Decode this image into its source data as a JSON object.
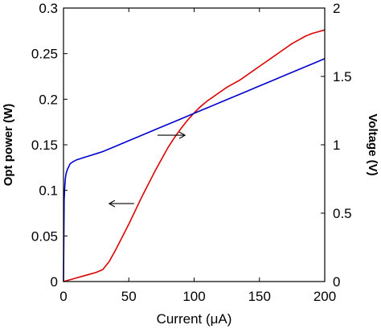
{
  "chart_data": {
    "type": "line",
    "xlabel": "Current (μA)",
    "ylabel_left": "Opt power (W)",
    "ylabel_right": "Voltage (V)",
    "xlim": [
      0,
      200
    ],
    "ylim_left": [
      0,
      0.3
    ],
    "ylim_right": [
      0,
      2
    ],
    "x_ticks": [
      "0",
      "50",
      "100",
      "150",
      "200"
    ],
    "y_left_ticks": [
      "0",
      "0.05",
      "0.1",
      "0.15",
      "0.2",
      "0.25",
      "0.3"
    ],
    "y_right_ticks": [
      "0",
      "0.5",
      "1",
      "1.5",
      "2"
    ],
    "grid": false,
    "series": [
      {
        "axis": "left",
        "color": "#dd0000",
        "x": [
          0,
          5,
          10,
          15,
          20,
          25,
          30,
          35,
          40,
          45,
          50,
          55,
          60,
          65,
          70,
          75,
          80,
          85,
          90,
          95,
          100,
          105,
          110,
          115,
          120,
          125,
          130,
          135,
          140,
          145,
          150,
          155,
          160,
          165,
          170,
          175,
          180,
          185,
          190,
          195,
          200
        ],
        "y": [
          0,
          0.002,
          0.004,
          0.006,
          0.008,
          0.01,
          0.013,
          0.022,
          0.035,
          0.049,
          0.063,
          0.078,
          0.093,
          0.107,
          0.121,
          0.134,
          0.147,
          0.158,
          0.168,
          0.177,
          0.185,
          0.192,
          0.198,
          0.203,
          0.208,
          0.213,
          0.217,
          0.221,
          0.226,
          0.231,
          0.236,
          0.241,
          0.246,
          0.251,
          0.256,
          0.261,
          0.265,
          0.269,
          0.272,
          0.274,
          0.276
        ]
      },
      {
        "axis": "right",
        "color": "#0000cc",
        "x": [
          0,
          0.5,
          1,
          1.5,
          2,
          3,
          4,
          5,
          7,
          10,
          15,
          20,
          25,
          30,
          40,
          50,
          60,
          70,
          80,
          90,
          100,
          110,
          120,
          130,
          140,
          150,
          160,
          170,
          180,
          190,
          200
        ],
        "y": [
          0,
          0.6,
          0.7,
          0.76,
          0.79,
          0.82,
          0.84,
          0.86,
          0.875,
          0.89,
          0.905,
          0.92,
          0.935,
          0.95,
          0.99,
          1.03,
          1.07,
          1.11,
          1.15,
          1.19,
          1.23,
          1.27,
          1.31,
          1.35,
          1.39,
          1.43,
          1.47,
          1.51,
          1.55,
          1.59,
          1.63
        ]
      }
    ],
    "annotations": [
      {
        "text": "→",
        "points_to": "right axis"
      },
      {
        "text": "←",
        "points_to": "left axis"
      }
    ]
  }
}
